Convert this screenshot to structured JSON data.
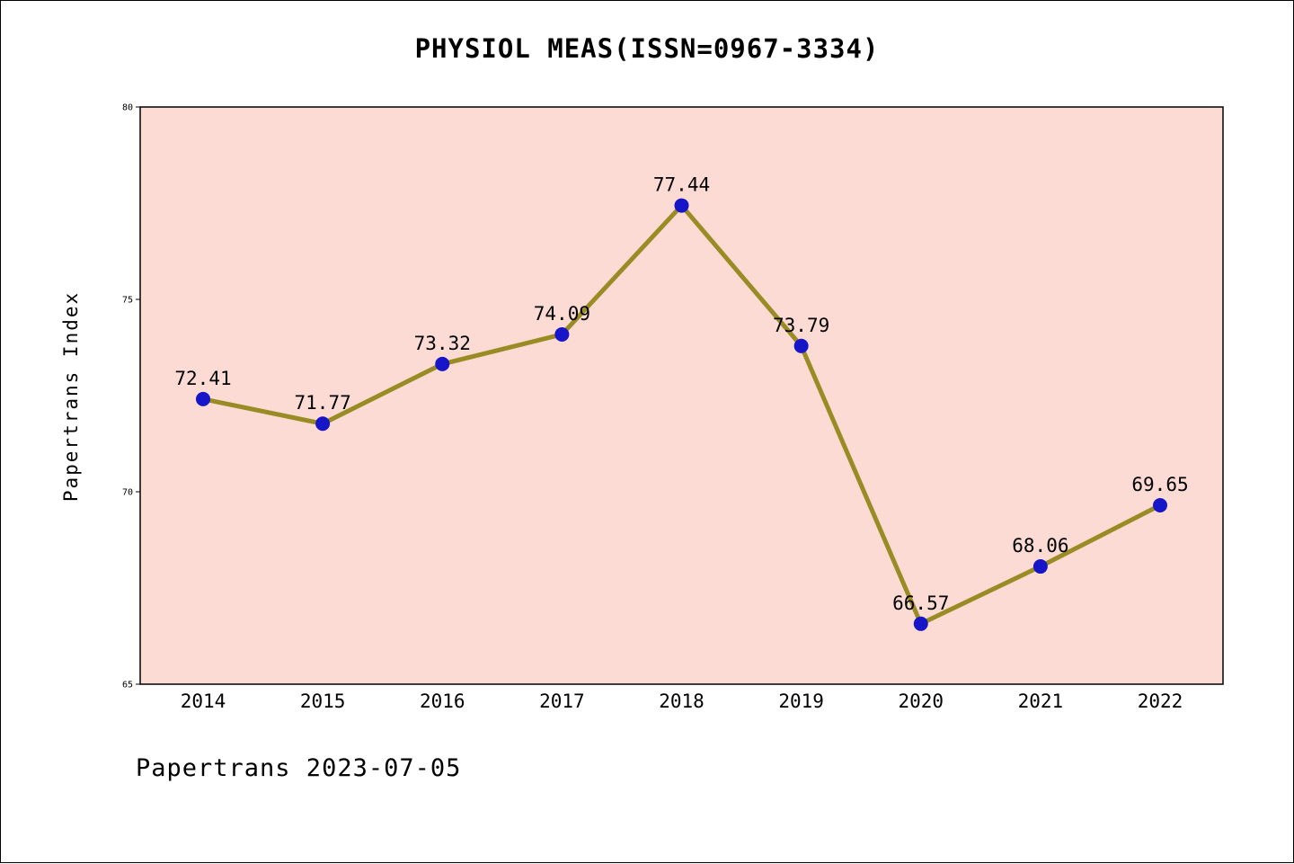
{
  "title": "PHYSIOL MEAS(ISSN=0967-3334)",
  "y_axis": {
    "label": "Papertrans Index"
  },
  "footer": {
    "text": "Papertrans 2023-07-05"
  },
  "colors": {
    "line": "#9a8c25",
    "marker": "#1616c8",
    "plot_background": "#fbdbd3",
    "page_background": "#ffffff",
    "axis": "#000000",
    "text": "#000000"
  },
  "chart_data": {
    "type": "line",
    "title": "PHYSIOL MEAS(ISSN=0967-3334)",
    "xlabel": "",
    "ylabel": "Papertrans Index",
    "categories": [
      "2014",
      "2015",
      "2016",
      "2017",
      "2018",
      "2019",
      "2020",
      "2021",
      "2022"
    ],
    "values": [
      72.41,
      71.77,
      73.32,
      74.09,
      77.44,
      73.79,
      66.57,
      68.06,
      69.65
    ],
    "point_labels": [
      "72.41",
      "71.77",
      "73.32",
      "74.09",
      "77.44",
      "73.79",
      "66.57",
      "68.06",
      "69.65"
    ],
    "ylim": [
      65,
      80
    ],
    "yticks": [
      65,
      70,
      75,
      80
    ],
    "grid": false,
    "legend": "none",
    "marker_style": "circle",
    "annotation": "Papertrans 2023-07-05"
  }
}
